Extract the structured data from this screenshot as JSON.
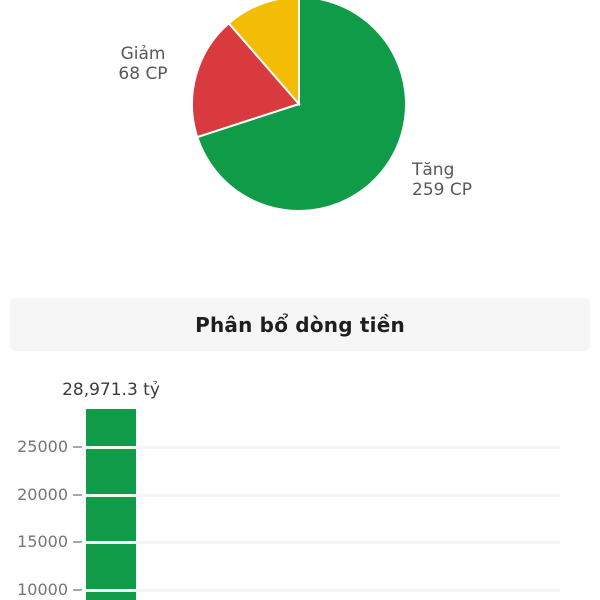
{
  "section_header": {
    "title": "Phân bổ dòng tiền",
    "background": "#f6f6f6",
    "text_color": "#1f1f1f"
  },
  "colors": {
    "up_green": "#0f9b48",
    "down_red": "#d93a3e",
    "reference_yellow": "#f3bd05",
    "pie_label_gray": "#58585a",
    "axis_tick_gray": "#757575"
  },
  "chart_data": [
    {
      "type": "pie",
      "name": "market-breadth-pie",
      "legend_position": "outside-labels",
      "slices": [
        {
          "name": "tang",
          "label_lines": [
            "Tăng",
            "259 CP"
          ],
          "value": 259,
          "unit": "CP",
          "color": "#0f9b48",
          "start_deg": 0,
          "end_deg": 252
        },
        {
          "name": "giam",
          "label_lines": [
            "Giảm",
            "68 CP"
          ],
          "value": 68,
          "unit": "CP",
          "color": "#d93a3e",
          "start_deg": 252,
          "end_deg": 319
        },
        {
          "name": "unlabeled-yellow",
          "label_lines": [],
          "value": null,
          "unit": "CP",
          "color": "#f3bd05",
          "start_deg": 319,
          "end_deg": 360
        }
      ]
    },
    {
      "type": "bar",
      "name": "cash-flow-bar",
      "title": "Phân bổ dòng tiền",
      "unit": "tỷ",
      "grid": true,
      "yticks": [
        25000,
        20000,
        15000,
        10000
      ],
      "bars": [
        {
          "value": 28971.3,
          "value_label": "28,971.3 tỷ",
          "color": "#0f9b48"
        }
      ]
    }
  ]
}
